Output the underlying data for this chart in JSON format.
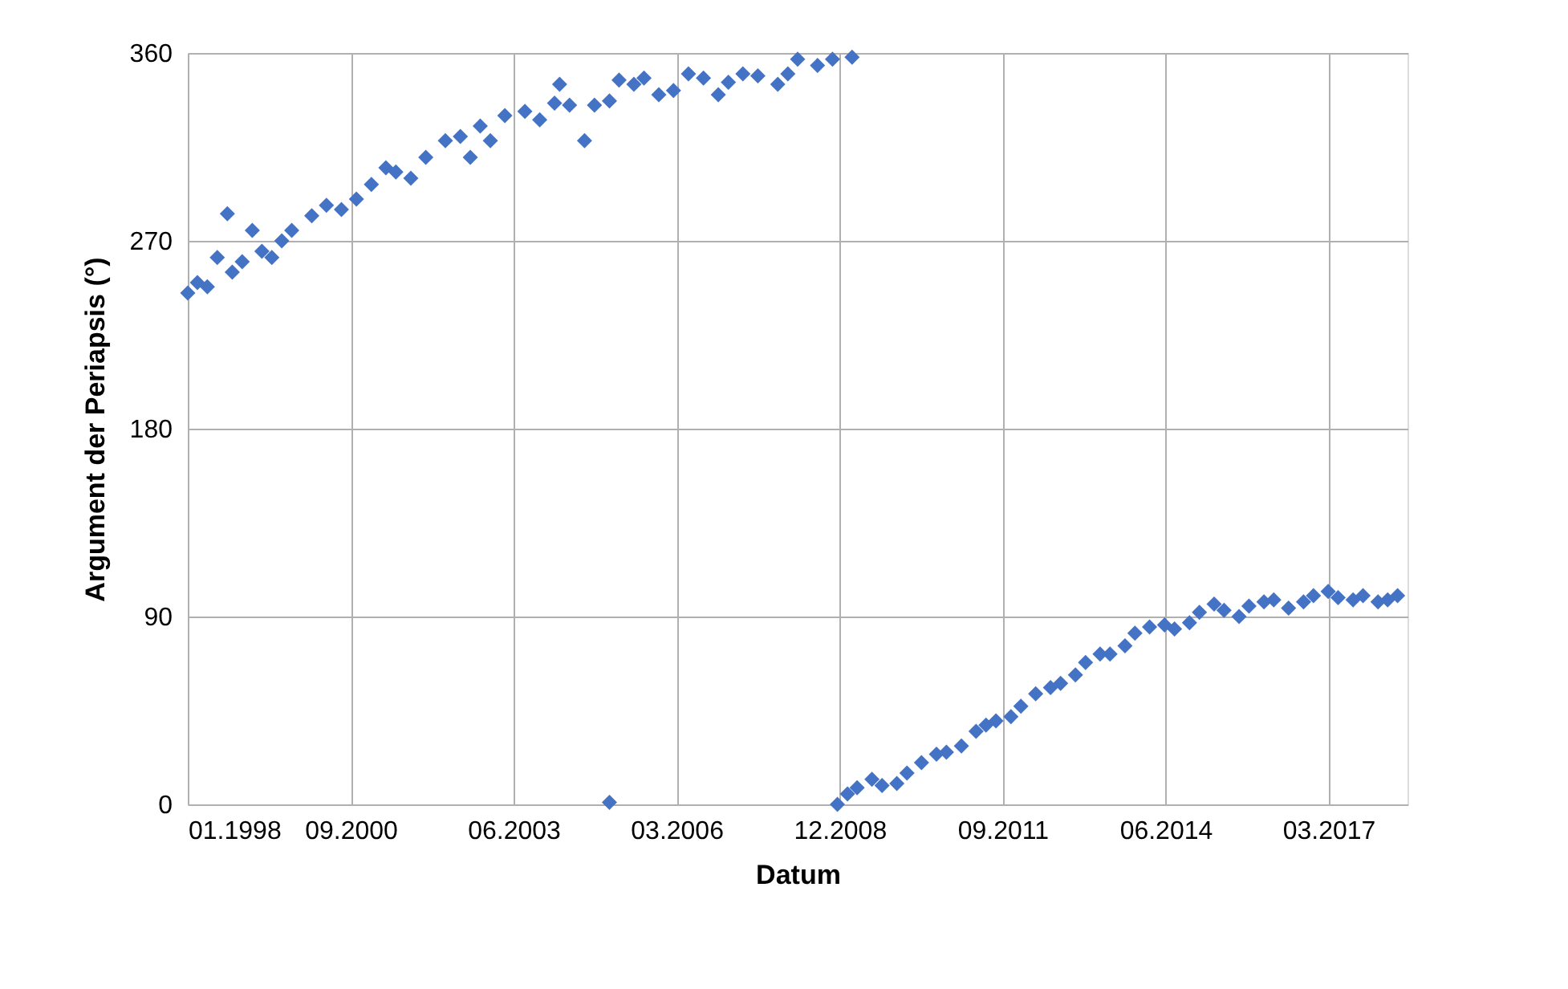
{
  "chart_data": {
    "type": "scatter",
    "xlabel": "Datum",
    "ylabel": "Argument der Periapsis (°)",
    "x": [
      "1998-01",
      "1998-03",
      "1998-05",
      "1998-07",
      "1998-09",
      "1998-10",
      "1998-12",
      "1999-02",
      "1999-04",
      "1999-06",
      "1999-08",
      "1999-10",
      "2000-02",
      "2000-05",
      "2000-08",
      "2000-11",
      "2001-02",
      "2001-05",
      "2001-07",
      "2001-10",
      "2002-01",
      "2002-05",
      "2002-08",
      "2002-10",
      "2002-12",
      "2003-02",
      "2003-05",
      "2003-09",
      "2003-12",
      "2004-03",
      "2004-04",
      "2004-06",
      "2004-09",
      "2004-11",
      "2005-02",
      "2005-04",
      "2005-07",
      "2005-09",
      "2005-12",
      "2006-03",
      "2006-06",
      "2006-09",
      "2006-12",
      "2007-02",
      "2007-05",
      "2007-08",
      "2007-12",
      "2008-02",
      "2008-04",
      "2008-08",
      "2008-11",
      "2009-03",
      "2005-02",
      "2008-12",
      "2009-02",
      "2009-04",
      "2009-07",
      "2009-09",
      "2009-12",
      "2010-02",
      "2010-05",
      "2010-08",
      "2010-10",
      "2011-01",
      "2011-04",
      "2011-06",
      "2011-08",
      "2011-11",
      "2012-01",
      "2012-04",
      "2012-07",
      "2012-09",
      "2012-12",
      "2013-02",
      "2013-05",
      "2013-07",
      "2013-10",
      "2013-12",
      "2014-03",
      "2014-06",
      "2014-08",
      "2014-11",
      "2015-01",
      "2015-04",
      "2015-06",
      "2015-09",
      "2015-11",
      "2016-02",
      "2016-04",
      "2016-07",
      "2016-10",
      "2016-12",
      "2017-03",
      "2017-05",
      "2017-08",
      "2017-10",
      "2018-01",
      "2018-03",
      "2018-05"
    ],
    "series": [
      {
        "color": "#4472c4",
        "values": [
          245,
          250,
          248,
          262,
          283,
          255,
          260,
          275,
          265,
          262,
          270,
          275,
          282,
          287,
          285,
          290,
          297,
          305,
          303,
          300,
          310,
          318,
          320,
          310,
          325,
          318,
          330,
          332,
          328,
          336,
          345,
          335,
          318,
          335,
          337,
          347,
          345,
          348,
          340,
          342,
          350,
          348,
          340,
          346,
          350,
          349,
          345,
          350,
          357,
          354,
          357,
          358,
          1,
          0,
          5,
          8,
          12,
          9,
          10,
          15,
          20,
          24,
          25,
          28,
          35,
          38,
          40,
          42,
          47,
          53,
          56,
          58,
          62,
          68,
          72,
          72,
          76,
          82,
          85,
          86,
          84,
          87,
          92,
          96,
          93,
          90,
          95,
          97,
          98,
          94,
          97,
          100,
          102,
          99,
          98,
          100,
          97,
          98,
          100
        ]
      }
    ],
    "xlim": [
      "1998-01-01",
      "2018-07-01"
    ],
    "xticks": [
      {
        "value": "1998-01-01",
        "label": "01.1998"
      },
      {
        "value": "2000-09-27",
        "label": "09.2000"
      },
      {
        "value": "2003-06-24",
        "label": "06.2003"
      },
      {
        "value": "2006-03-20",
        "label": "03.2006"
      },
      {
        "value": "2008-12-15",
        "label": "12.2008"
      },
      {
        "value": "2011-09-11",
        "label": "09.2011"
      },
      {
        "value": "2014-06-07",
        "label": "06.2014"
      },
      {
        "value": "2017-03-03",
        "label": "03.2017"
      }
    ],
    "ylim": [
      0,
      360
    ],
    "yticks": [
      0,
      90,
      180,
      270,
      360
    ],
    "grid": true,
    "marker": "diamond"
  }
}
